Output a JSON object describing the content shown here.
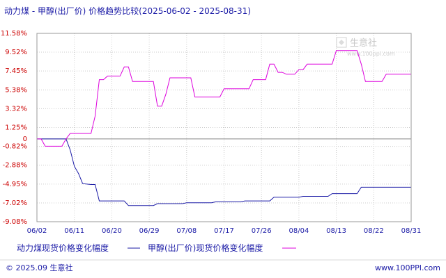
{
  "chart_data": {
    "type": "line",
    "title": "动力煤 - 甲醇(出厂价) 价格趋势比较(2025-06-02 - 2025-08-31)",
    "y_ticks": [
      11.58,
      9.52,
      7.45,
      5.38,
      3.32,
      1.25,
      0,
      -0.82,
      -2.88,
      -4.95,
      -7.02,
      -9.08
    ],
    "y_tick_labels": [
      "11.58%",
      "9.52%",
      "7.45%",
      "5.38%",
      "3.32%",
      "1.25%",
      "0",
      "-0.82%",
      "-2.88%",
      "-4.95%",
      "-7.02%",
      "-9.08%"
    ],
    "ylim": [
      -9.08,
      11.58
    ],
    "x_ticks": [
      "06/02",
      "06/11",
      "06/20",
      "06/29",
      "07/08",
      "07/17",
      "07/26",
      "08/04",
      "08/13",
      "08/22",
      "08/31"
    ],
    "xlim": [
      "2025-06-02",
      "2025-08-31"
    ],
    "grid": true,
    "legend_placement": "bottom",
    "series": [
      {
        "name": "动力煤现货价格变化幅度",
        "color": "#1a1aa6",
        "points": [
          [
            "2025-06-02",
            0
          ],
          [
            "2025-06-09",
            0
          ],
          [
            "2025-06-10",
            -1.2
          ],
          [
            "2025-06-11",
            -3.0
          ],
          [
            "2025-06-12",
            -3.8
          ],
          [
            "2025-06-13",
            -4.9
          ],
          [
            "2025-06-15",
            -5.0
          ],
          [
            "2025-06-16",
            -5.0
          ],
          [
            "2025-06-17",
            -6.8
          ],
          [
            "2025-06-23",
            -6.8
          ],
          [
            "2025-06-24",
            -7.3
          ],
          [
            "2025-06-30",
            -7.3
          ],
          [
            "2025-07-01",
            -7.1
          ],
          [
            "2025-07-07",
            -7.1
          ],
          [
            "2025-07-08",
            -7.0
          ],
          [
            "2025-07-14",
            -7.0
          ],
          [
            "2025-07-15",
            -6.9
          ],
          [
            "2025-07-21",
            -6.9
          ],
          [
            "2025-07-22",
            -6.8
          ],
          [
            "2025-07-28",
            -6.8
          ],
          [
            "2025-07-29",
            -6.4
          ],
          [
            "2025-08-04",
            -6.4
          ],
          [
            "2025-08-05",
            -6.3
          ],
          [
            "2025-08-11",
            -6.3
          ],
          [
            "2025-08-12",
            -6.0
          ],
          [
            "2025-08-18",
            -6.0
          ],
          [
            "2025-08-19",
            -5.3
          ],
          [
            "2025-08-31",
            -5.3
          ]
        ]
      },
      {
        "name": "甲醇(出厂价)现货价格变化幅度",
        "color": "#dd00dd",
        "points": [
          [
            "2025-06-02",
            0
          ],
          [
            "2025-06-03",
            0
          ],
          [
            "2025-06-04",
            -0.8
          ],
          [
            "2025-06-08",
            -0.8
          ],
          [
            "2025-06-09",
            0
          ],
          [
            "2025-06-10",
            0.6
          ],
          [
            "2025-06-14",
            0.6
          ],
          [
            "2025-06-15",
            0.6
          ],
          [
            "2025-06-16",
            2.5
          ],
          [
            "2025-06-17",
            6.5
          ],
          [
            "2025-06-18",
            6.5
          ],
          [
            "2025-06-19",
            6.9
          ],
          [
            "2025-06-22",
            6.9
          ],
          [
            "2025-06-23",
            7.9
          ],
          [
            "2025-06-24",
            7.9
          ],
          [
            "2025-06-25",
            6.3
          ],
          [
            "2025-06-29",
            6.3
          ],
          [
            "2025-06-30",
            6.3
          ],
          [
            "2025-07-01",
            3.6
          ],
          [
            "2025-07-02",
            3.6
          ],
          [
            "2025-07-03",
            4.9
          ],
          [
            "2025-07-04",
            6.7
          ],
          [
            "2025-07-08",
            6.7
          ],
          [
            "2025-07-09",
            6.7
          ],
          [
            "2025-07-10",
            4.6
          ],
          [
            "2025-07-15",
            4.6
          ],
          [
            "2025-07-16",
            4.6
          ],
          [
            "2025-07-17",
            5.5
          ],
          [
            "2025-07-23",
            5.5
          ],
          [
            "2025-07-24",
            6.5
          ],
          [
            "2025-07-26",
            6.5
          ],
          [
            "2025-07-27",
            6.5
          ],
          [
            "2025-07-28",
            8.2
          ],
          [
            "2025-07-29",
            8.2
          ],
          [
            "2025-07-30",
            7.3
          ],
          [
            "2025-07-31",
            7.3
          ],
          [
            "2025-08-01",
            7.1
          ],
          [
            "2025-08-03",
            7.1
          ],
          [
            "2025-08-04",
            7.6
          ],
          [
            "2025-08-05",
            7.6
          ],
          [
            "2025-08-06",
            8.2
          ],
          [
            "2025-08-12",
            8.2
          ],
          [
            "2025-08-13",
            9.7
          ],
          [
            "2025-08-18",
            9.7
          ],
          [
            "2025-08-19",
            8.2
          ],
          [
            "2025-08-20",
            6.3
          ],
          [
            "2025-08-24",
            6.3
          ],
          [
            "2025-08-25",
            7.1
          ],
          [
            "2025-08-31",
            7.1
          ]
        ]
      }
    ]
  },
  "legend": {
    "coal_label": "动力煤现货价格变化幅度",
    "methanol_label": "甲醇(出厂价)现货价格变化幅度"
  },
  "footer": {
    "copyright": "© 2025.09 生意社",
    "url": "www.100PPI.com"
  },
  "watermark": {
    "brand": "生意社",
    "url": "www.100ppi.com"
  },
  "colors": {
    "coal": "#1a1aa6",
    "methanol": "#dd00dd",
    "y_tick": "#cc0000",
    "x_tick": "#1a1aa6",
    "grid": "#cccccc",
    "background": "#ffffff"
  }
}
